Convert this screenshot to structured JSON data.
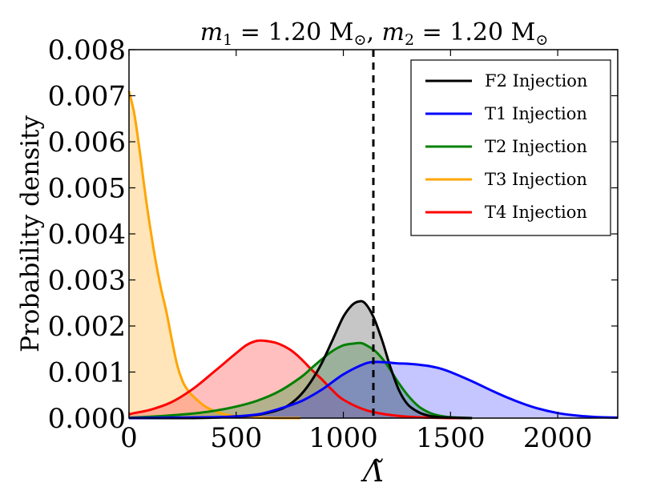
{
  "chart_data": {
    "type": "area",
    "title": "m₁ = 1.20 M⊙,  m₂ = 1.20 M⊙",
    "xlabel": "Λ̃",
    "ylabel": "Probability density",
    "xlim": [
      0,
      2280
    ],
    "ylim": [
      0,
      0.008
    ],
    "xticks": [
      0,
      500,
      1000,
      1500,
      2000
    ],
    "xtick_labels": [
      "0",
      "500",
      "1000",
      "1500",
      "2000"
    ],
    "yticks": [
      0,
      0.001,
      0.002,
      0.003,
      0.004,
      0.005,
      0.006,
      0.007,
      0.008
    ],
    "ytick_labels": [
      "0.000",
      "0.001",
      "0.002",
      "0.003",
      "0.004",
      "0.005",
      "0.006",
      "0.007",
      "0.008"
    ],
    "vline": {
      "x": 1140,
      "style": "dashed",
      "color": "#000000"
    },
    "legend": {
      "position": "top-right"
    },
    "series": [
      {
        "name": "F2 Injection",
        "color": "#000000",
        "fill": "#808080",
        "fill_opacity": 0.45,
        "x": [
          0,
          100,
          200,
          300,
          400,
          500,
          600,
          700,
          750,
          800,
          850,
          900,
          950,
          1000,
          1040,
          1070,
          1100,
          1140,
          1180,
          1220,
          1260,
          1300,
          1350,
          1400,
          1450,
          1500,
          1600
        ],
        "y": [
          0,
          0,
          0,
          0,
          1e-05,
          3e-05,
          7e-05,
          0.00018,
          0.0003,
          0.0005,
          0.0008,
          0.0012,
          0.0017,
          0.0022,
          0.00245,
          0.00253,
          0.0025,
          0.0022,
          0.0017,
          0.0011,
          0.0006,
          0.0003,
          0.00013,
          5e-05,
          2e-05,
          1e-05,
          0
        ]
      },
      {
        "name": "T1 Injection",
        "color": "#0000ff",
        "fill": "#4040ff",
        "fill_opacity": 0.3,
        "x": [
          0,
          200,
          400,
          500,
          600,
          700,
          800,
          900,
          1000,
          1100,
          1150,
          1200,
          1250,
          1300,
          1350,
          1400,
          1450,
          1500,
          1600,
          1700,
          1800,
          1900,
          2000,
          2100,
          2200,
          2280
        ],
        "y": [
          0,
          1e-05,
          2e-05,
          4e-05,
          8e-05,
          0.0002,
          0.00036,
          0.00062,
          0.00095,
          0.00118,
          0.00122,
          0.00121,
          0.00119,
          0.00118,
          0.00116,
          0.00113,
          0.00108,
          0.001,
          0.0008,
          0.00058,
          0.00038,
          0.00022,
          0.00011,
          5e-05,
          2e-05,
          1e-05
        ]
      },
      {
        "name": "T2 Injection",
        "color": "#008000",
        "fill": "#40a040",
        "fill_opacity": 0.4,
        "x": [
          0,
          100,
          200,
          300,
          400,
          500,
          600,
          700,
          800,
          850,
          900,
          950,
          1000,
          1050,
          1080,
          1100,
          1150,
          1200,
          1250,
          1300,
          1350,
          1400,
          1450,
          1500,
          1600
        ],
        "y": [
          1e-05,
          3e-05,
          6e-05,
          0.0001,
          0.00016,
          0.00025,
          0.00038,
          0.00058,
          0.00088,
          0.00108,
          0.00128,
          0.00146,
          0.00158,
          0.00162,
          0.00163,
          0.0016,
          0.00145,
          0.00118,
          0.00082,
          0.0005,
          0.00026,
          0.00012,
          5e-05,
          2e-05,
          0
        ]
      },
      {
        "name": "T3 Injection",
        "color": "#ffa500",
        "fill": "#ffd38a",
        "fill_opacity": 0.6,
        "x": [
          0,
          25,
          50,
          75,
          100,
          125,
          150,
          175,
          200,
          225,
          250,
          275,
          300,
          350,
          400,
          450,
          500,
          600,
          700,
          800
        ],
        "y": [
          0.0071,
          0.0066,
          0.0058,
          0.0049,
          0.0041,
          0.0034,
          0.0028,
          0.0023,
          0.0017,
          0.00115,
          0.0008,
          0.0006,
          0.00047,
          0.00027,
          0.00015,
          8e-05,
          4e-05,
          1e-05,
          0,
          0
        ]
      },
      {
        "name": "T4 Injection",
        "color": "#ff0000",
        "fill": "#ff6060",
        "fill_opacity": 0.4,
        "x": [
          0,
          25,
          100,
          200,
          300,
          400,
          500,
          550,
          600,
          650,
          700,
          750,
          800,
          850,
          900,
          950,
          1000,
          1100,
          1200,
          1300,
          1400,
          1500,
          1600
        ],
        "y": [
          8e-05,
          0.00011,
          0.00018,
          0.00035,
          0.00064,
          0.00102,
          0.00141,
          0.00159,
          0.00168,
          0.00167,
          0.00161,
          0.00149,
          0.0013,
          0.00106,
          0.00084,
          0.0006,
          0.0004,
          0.00018,
          8e-05,
          3e-05,
          1e-05,
          0,
          0
        ]
      }
    ]
  }
}
